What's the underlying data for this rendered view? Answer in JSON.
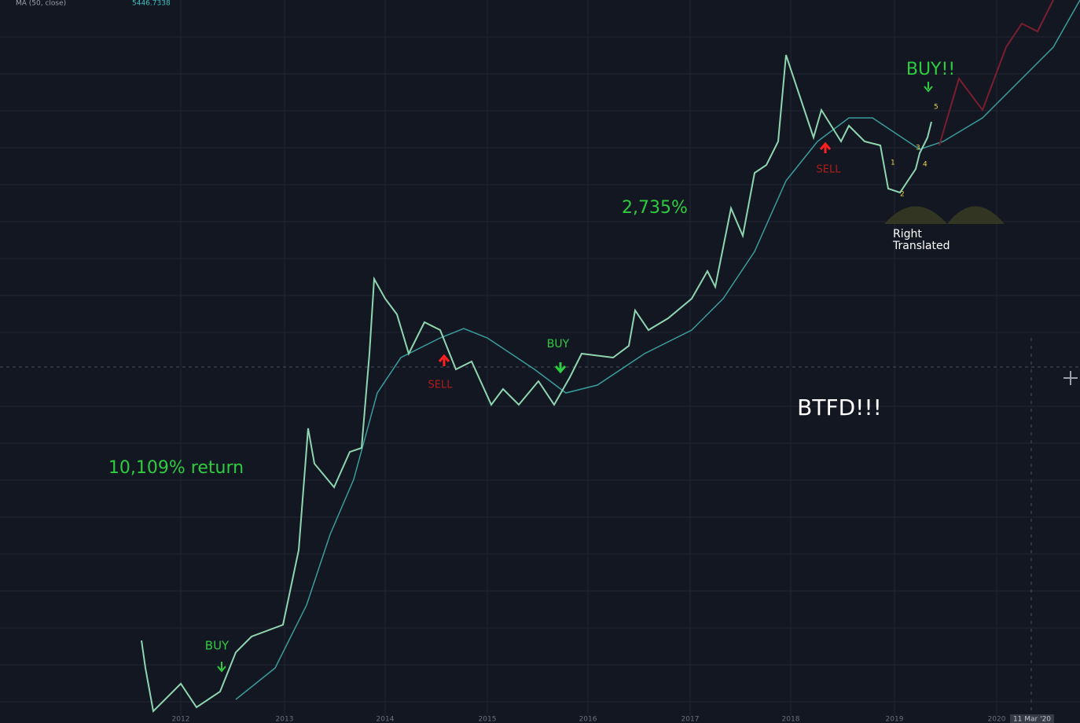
{
  "toolbar": {
    "indicator": "MA (50, close)",
    "value": "5446.7338"
  },
  "annotations": {
    "buy_1": "BUY",
    "return_1": "10,109% return",
    "sell_1": "SELL",
    "buy_2": "BUY",
    "return_2": "2,735%",
    "sell_2": "SELL",
    "buy_3": "BUY!!",
    "btfd": "BTFD!!!",
    "cycle_1": "Right",
    "cycle_2": "Translated",
    "waves": [
      "1",
      "2",
      "3",
      "4",
      "5"
    ]
  },
  "x_axis": {
    "labels": [
      "2012",
      "2013",
      "2014",
      "2015",
      "2016",
      "2017",
      "2018",
      "2019",
      "2020"
    ],
    "date": "11 Mar '20"
  }
}
